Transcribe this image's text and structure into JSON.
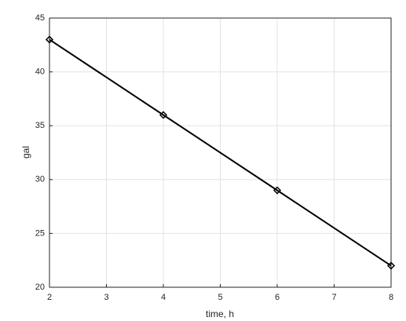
{
  "chart_data": {
    "type": "line",
    "xlabel": "time, h",
    "ylabel": "gal",
    "x": [
      2,
      4,
      6,
      8
    ],
    "values": [
      43,
      36,
      29,
      22
    ],
    "color": "#000000",
    "marker": "diamond",
    "xlim": [
      2,
      8
    ],
    "xticks": [
      2,
      3,
      4,
      5,
      6,
      7,
      8
    ],
    "ylim": [
      20,
      45
    ],
    "yticks": [
      20,
      25,
      30,
      35,
      40,
      45
    ],
    "grid": true
  }
}
